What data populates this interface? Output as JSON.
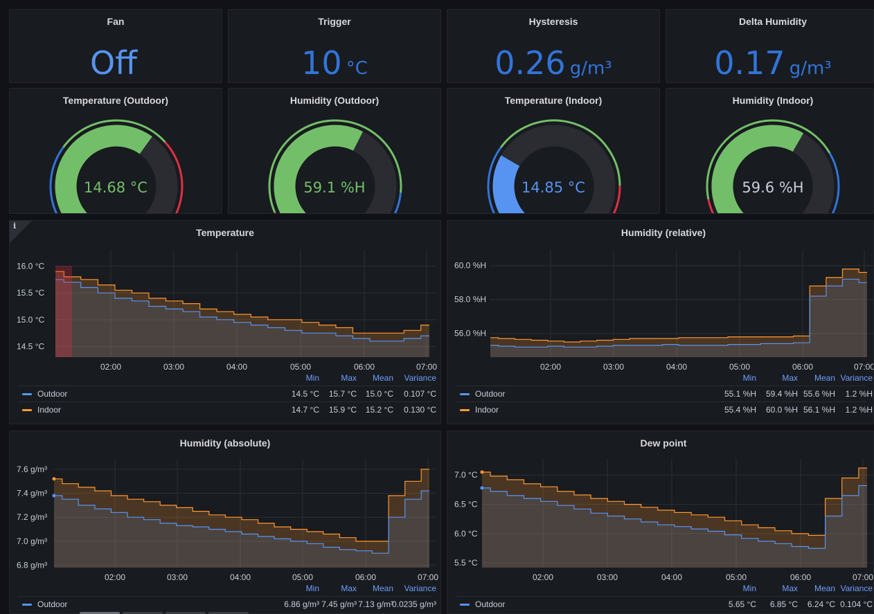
{
  "stats": [
    {
      "title": "Fan",
      "value": "Off",
      "unit": "",
      "color": "#5794f2"
    },
    {
      "title": "Trigger",
      "value": "10",
      "unit": "°C",
      "color": "#3274d9"
    },
    {
      "title": "Hysteresis",
      "value": "0.26",
      "unit": "g/m³",
      "color": "#3274d9"
    },
    {
      "title": "Delta Humidity",
      "value": "0.17",
      "unit": "g/m³",
      "color": "#3274d9"
    }
  ],
  "gauges": [
    {
      "title": "Temperature (Outdoor)",
      "display": "14.68 °C",
      "value": 14.68,
      "fill_fraction": 0.62,
      "color": "#73bf69",
      "thresholds": [
        {
          "to": 0.32,
          "color": "#3274d9"
        },
        {
          "to": 0.66,
          "color": "#73bf69"
        },
        {
          "to": 1.0,
          "color": "#e02f44"
        }
      ]
    },
    {
      "title": "Humidity (Outdoor)",
      "display": "59.1 %H",
      "value": 59.1,
      "fill_fraction": 0.59,
      "color": "#73bf69",
      "thresholds": [
        {
          "to": 0.12,
          "color": "#e02f44"
        },
        {
          "to": 0.82,
          "color": "#73bf69"
        },
        {
          "to": 1.0,
          "color": "#3274d9"
        }
      ]
    },
    {
      "title": "Temperature (Indoor)",
      "display": "14.85 °C",
      "value": 14.85,
      "fill_fraction": 0.3,
      "color": "#5794f2",
      "thresholds": [
        {
          "to": 0.32,
          "color": "#3274d9"
        },
        {
          "to": 0.8,
          "color": "#73bf69"
        },
        {
          "to": 1.0,
          "color": "#e02f44"
        }
      ]
    },
    {
      "title": "Humidity (Indoor)",
      "display": "59.6 %H",
      "value": 59.6,
      "fill_fraction": 0.6,
      "color": "#73bf69",
      "thresholds": [
        {
          "to": 0.16,
          "color": "#e02f44"
        },
        {
          "to": 0.7,
          "color": "#73bf69"
        },
        {
          "to": 1.0,
          "color": "#3274d9"
        }
      ]
    }
  ],
  "charts": [
    {
      "title": "Temperature",
      "ylabels": [
        "16.0 °C",
        "15.5 °C",
        "15.0 °C",
        "14.5 °C"
      ],
      "yticks": [
        16.0,
        15.5,
        15.0,
        14.5
      ],
      "ylim": [
        14.3,
        16.2
      ],
      "xlabels": [
        "02:00",
        "03:00",
        "04:00",
        "05:00",
        "06:00",
        "07:00"
      ],
      "series": [
        {
          "name": "Outdoor",
          "color": "#5794f2",
          "values": [
            15.75,
            15.7,
            15.6,
            15.5,
            15.4,
            15.35,
            15.25,
            15.2,
            15.15,
            15.05,
            15.0,
            14.95,
            14.9,
            14.85,
            14.8,
            14.75,
            14.75,
            14.7,
            14.65,
            14.6,
            14.6,
            14.65,
            14.7
          ]
        },
        {
          "name": "Indoor",
          "color": "#ff9830",
          "values": [
            15.9,
            15.8,
            15.75,
            15.65,
            15.55,
            15.5,
            15.4,
            15.35,
            15.3,
            15.2,
            15.15,
            15.1,
            15.05,
            15.0,
            15.0,
            14.95,
            14.9,
            14.85,
            14.75,
            14.75,
            14.75,
            14.8,
            14.9
          ]
        }
      ],
      "legend_headers": [
        "Min",
        "Max",
        "Mean",
        "Variance"
      ],
      "legend": [
        {
          "name": "Outdoor",
          "color": "#5794f2",
          "min": "14.5 °C",
          "max": "15.7 °C",
          "mean": "15.0 °C",
          "variance": "0.107 °C"
        },
        {
          "name": "Indoor",
          "color": "#ff9830",
          "min": "14.7 °C",
          "max": "15.9 °C",
          "mean": "15.2 °C",
          "variance": "0.130 °C"
        }
      ],
      "info": "i"
    },
    {
      "title": "Humidity (relative)",
      "ylabels": [
        "60.0 %H",
        "58.0 %H",
        "56.0 %H"
      ],
      "yticks": [
        60.0,
        58.0,
        56.0
      ],
      "ylim": [
        54.6,
        60.6
      ],
      "xlabels": [
        "02:00",
        "03:00",
        "04:00",
        "05:00",
        "06:00",
        "07:00"
      ],
      "series": [
        {
          "name": "Outdoor",
          "color": "#5794f2",
          "values": [
            55.3,
            55.25,
            55.2,
            55.2,
            55.25,
            55.2,
            55.2,
            55.25,
            55.3,
            55.3,
            55.3,
            55.35,
            55.3,
            55.3,
            55.3,
            55.35,
            55.35,
            55.4,
            55.4,
            55.45,
            58.2,
            58.8,
            59.2,
            59.0
          ]
        },
        {
          "name": "Indoor",
          "color": "#ff9830",
          "values": [
            55.75,
            55.7,
            55.65,
            55.6,
            55.55,
            55.5,
            55.55,
            55.6,
            55.65,
            55.7,
            55.7,
            55.7,
            55.75,
            55.75,
            55.75,
            55.8,
            55.8,
            55.8,
            55.8,
            55.85,
            58.8,
            59.3,
            59.8,
            59.6
          ]
        }
      ],
      "legend_headers": [
        "Min",
        "Max",
        "Mean",
        "Variance"
      ],
      "legend": [
        {
          "name": "Outdoor",
          "color": "#5794f2",
          "min": "55.1 %H",
          "max": "59.4 %H",
          "mean": "55.6 %H",
          "variance": "1.2 %H"
        },
        {
          "name": "Indoor",
          "color": "#ff9830",
          "min": "55.4 %H",
          "max": "60.0 %H",
          "mean": "56.1 %H",
          "variance": "1.2 %H"
        }
      ]
    },
    {
      "title": "Humidity (absolute)",
      "ylabels": [
        "7.6 g/m³",
        "7.4 g/m³",
        "7.2 g/m³",
        "7.0 g/m³",
        "6.8 g/m³"
      ],
      "yticks": [
        7.6,
        7.4,
        7.2,
        7.0,
        6.8
      ],
      "ylim": [
        6.78,
        7.64
      ],
      "xlabels": [
        "02:00",
        "03:00",
        "04:00",
        "05:00",
        "06:00",
        "07:00"
      ],
      "series": [
        {
          "name": "Outdoor",
          "color": "#5794f2",
          "values": [
            7.38,
            7.35,
            7.3,
            7.27,
            7.24,
            7.2,
            7.18,
            7.15,
            7.13,
            7.12,
            7.1,
            7.08,
            7.06,
            7.04,
            7.02,
            7.0,
            6.98,
            6.95,
            6.93,
            6.92,
            6.9,
            7.2,
            7.35,
            7.42
          ]
        },
        {
          "name": "Indoor",
          "color": "#ff9830",
          "values": [
            7.52,
            7.48,
            7.45,
            7.42,
            7.38,
            7.35,
            7.33,
            7.3,
            7.28,
            7.25,
            7.22,
            7.2,
            7.18,
            7.15,
            7.12,
            7.1,
            7.08,
            7.06,
            7.03,
            7.0,
            7.0,
            7.38,
            7.5,
            7.6
          ]
        }
      ],
      "legend_headers": [
        "Min",
        "Max",
        "Mean",
        "Variance"
      ],
      "legend": [
        {
          "name": "Outdoor",
          "color": "#5794f2",
          "min": "6.86 g/m³",
          "max": "7.45 g/m³",
          "mean": "7.13 g/m³",
          "variance": "0.0235 g/m³"
        }
      ]
    },
    {
      "title": "Dew point",
      "ylabels": [
        "7.0 °C",
        "6.5 °C",
        "6.0 °C",
        "5.5 °C"
      ],
      "yticks": [
        7.0,
        6.5,
        6.0,
        5.5
      ],
      "ylim": [
        5.42,
        7.18
      ],
      "xlabels": [
        "02:00",
        "03:00",
        "04:00",
        "05:00",
        "06:00",
        "07:00"
      ],
      "series": [
        {
          "name": "Outdoor",
          "color": "#5794f2",
          "values": [
            6.78,
            6.72,
            6.65,
            6.6,
            6.55,
            6.48,
            6.42,
            6.35,
            6.3,
            6.25,
            6.2,
            6.15,
            6.12,
            6.08,
            6.04,
            5.98,
            5.92,
            5.87,
            5.83,
            5.78,
            5.75,
            6.3,
            6.65,
            6.82
          ]
        },
        {
          "name": "Indoor",
          "color": "#ff9830",
          "values": [
            7.05,
            6.98,
            6.92,
            6.85,
            6.8,
            6.72,
            6.66,
            6.6,
            6.55,
            6.5,
            6.45,
            6.4,
            6.36,
            6.32,
            6.28,
            6.22,
            6.15,
            6.1,
            6.05,
            6.0,
            5.97,
            6.6,
            6.95,
            7.12
          ]
        }
      ],
      "legend_headers": [
        "Min",
        "Max",
        "Mean",
        "Variance"
      ],
      "legend": [
        {
          "name": "Outdoor",
          "color": "#5794f2",
          "min": "5.65 °C",
          "max": "6.85 °C",
          "mean": "6.24 °C",
          "variance": "0.104 °C"
        }
      ]
    }
  ]
}
